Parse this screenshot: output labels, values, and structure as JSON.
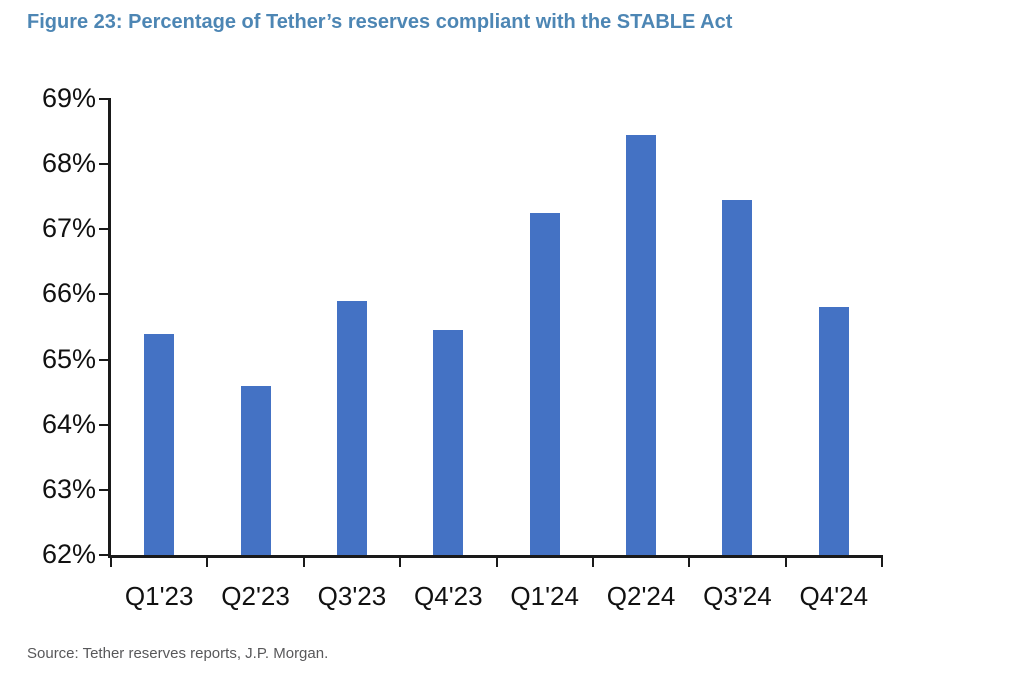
{
  "figure": {
    "title": "Figure 23: Percentage of Tether’s reserves compliant with the STABLE Act",
    "title_color": "#4d86b4",
    "source": "Source: Tether reserves reports, J.P. Morgan."
  },
  "chart_data": {
    "type": "bar",
    "title": "Figure 23: Percentage of Tether’s reserves compliant with the STABLE Act",
    "categories": [
      "Q1'23",
      "Q2'23",
      "Q3'23",
      "Q4'23",
      "Q1'24",
      "Q2'24",
      "Q3'24",
      "Q4'24"
    ],
    "values": [
      65.4,
      64.6,
      65.9,
      65.45,
      67.25,
      68.45,
      67.45,
      65.8
    ],
    "xlabel": "",
    "ylabel": "",
    "ylim": [
      62,
      69
    ],
    "ytick_step": 1,
    "ytick_labels": [
      "62%",
      "63%",
      "64%",
      "65%",
      "66%",
      "67%",
      "68%",
      "69%"
    ],
    "bar_color": "#4472c4",
    "axis_color": "#1a1a1a",
    "grid": false,
    "legend": null
  }
}
